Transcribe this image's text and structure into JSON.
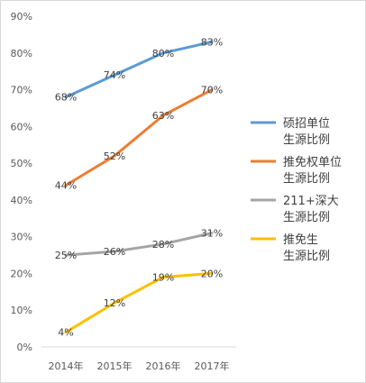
{
  "chart_data": {
    "type": "line",
    "title": "",
    "xlabel": "",
    "ylabel": "",
    "categories": [
      "2014年",
      "2015年",
      "2016年",
      "2017年"
    ],
    "ylim": [
      0,
      90
    ],
    "yticks": [
      0,
      10,
      20,
      30,
      40,
      50,
      60,
      70,
      80,
      90
    ],
    "ytick_labels": [
      "0%",
      "10%",
      "20%",
      "30%",
      "40%",
      "50%",
      "60%",
      "70%",
      "80%",
      "90%"
    ],
    "grid": false,
    "legend_position": "right",
    "series": [
      {
        "name": [
          "硕招单位",
          "生源比例"
        ],
        "color": "#5b9bd5",
        "values": [
          68,
          74,
          80,
          83
        ],
        "labels": [
          "68%",
          "74%",
          "80%",
          "83%"
        ]
      },
      {
        "name": [
          "推免权单位",
          "生源比例"
        ],
        "color": "#ed7d31",
        "values": [
          44,
          52,
          63,
          70
        ],
        "labels": [
          "44%",
          "52%",
          "63%",
          "70%"
        ]
      },
      {
        "name": [
          "211+深大",
          "生源比例"
        ],
        "color": "#a5a5a5",
        "values": [
          25,
          26,
          28,
          31
        ],
        "labels": [
          "25%",
          "26%",
          "28%",
          "31%"
        ]
      },
      {
        "name": [
          "推免生",
          "生源比例"
        ],
        "color": "#ffc000",
        "values": [
          4,
          12,
          19,
          20
        ],
        "labels": [
          "4%",
          "12%",
          "19%",
          "20%"
        ]
      }
    ]
  }
}
